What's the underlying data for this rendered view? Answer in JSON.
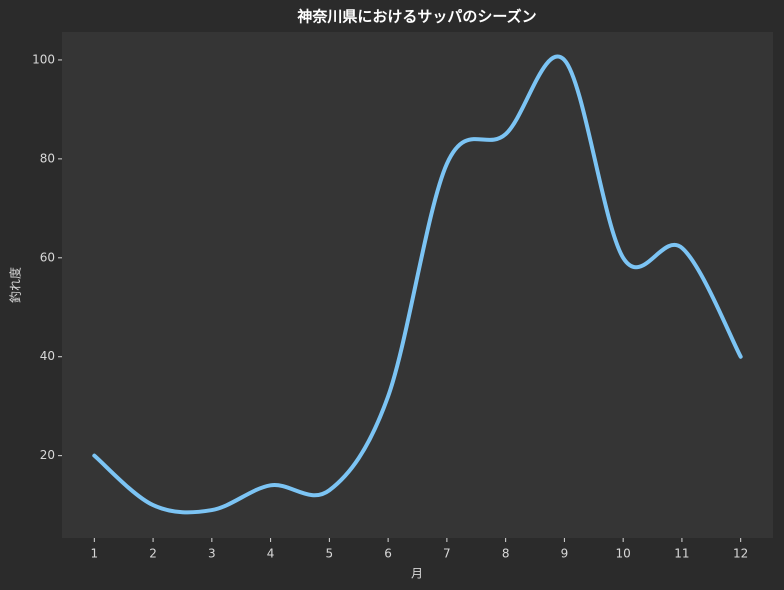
{
  "chart_data": {
    "type": "line",
    "title": "神奈川県におけるサッパのシーズン",
    "xlabel": "月",
    "ylabel": "釣れ度",
    "x": [
      1,
      2,
      3,
      4,
      5,
      6,
      7,
      8,
      9,
      10,
      11,
      12
    ],
    "series": [
      {
        "name": "釣れ度",
        "color": "#7cc4f4",
        "values": [
          20,
          10,
          9,
          14,
          13,
          32,
          79,
          85,
          100,
          60,
          62,
          40
        ]
      }
    ],
    "xlim": [
      0.45,
      12.55
    ],
    "xticks": [
      1,
      2,
      3,
      4,
      5,
      6,
      7,
      8,
      9,
      10,
      11,
      12
    ],
    "ylim": [
      3.35,
      105.65
    ],
    "yticks": [
      20,
      40,
      60,
      80,
      100
    ],
    "grid": false,
    "background": "#2b2b2b",
    "plot_background": "#353535"
  }
}
